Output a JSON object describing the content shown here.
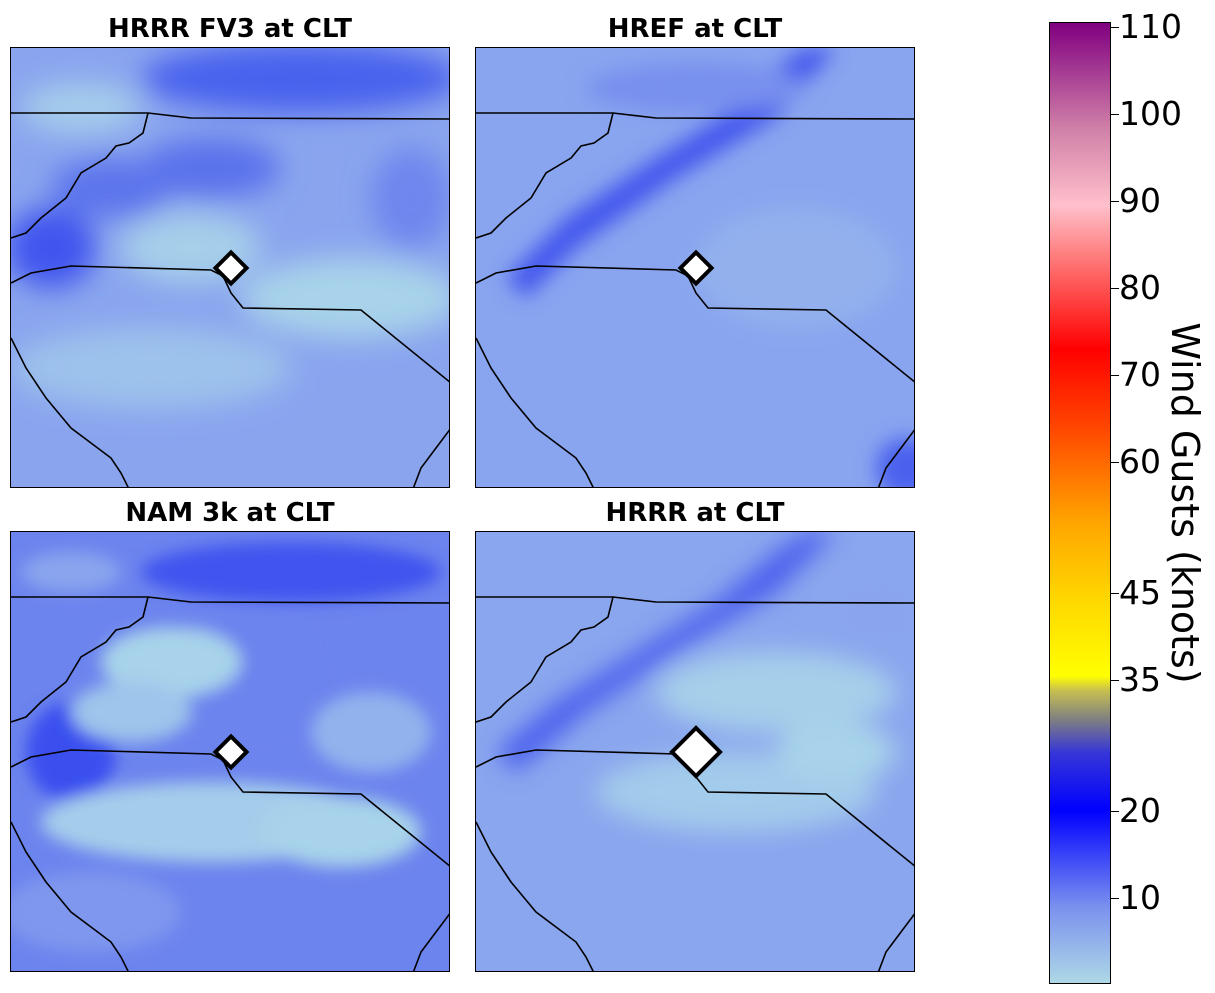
{
  "panels": [
    {
      "title": "HRRR FV3 at CLT",
      "marker": "small"
    },
    {
      "title": "HREF at CLT",
      "marker": "small"
    },
    {
      "title": "NAM 3k at CLT",
      "marker": "small"
    },
    {
      "title": "HRRR at CLT",
      "marker": "large"
    }
  ],
  "colorbar": {
    "label": "Wind Gusts (knots)",
    "ticks": [
      "110",
      "100",
      "90",
      "80",
      "70",
      "60",
      "45",
      "35",
      "20",
      "10"
    ],
    "colors": {
      "lightblue": "#add8e6",
      "blue": "#0000ff",
      "grey": "#808080",
      "yellow": "#ffff00",
      "orange": "#ffa500",
      "red": "#ff0000",
      "pink": "#ffc0cb",
      "purple": "#800080"
    }
  },
  "map_colors": {
    "base": "#8aa5ee",
    "light": "#a8d3ea",
    "dark": "#3447f0",
    "border": "#000000",
    "marker_fill": "#ffffff"
  }
}
